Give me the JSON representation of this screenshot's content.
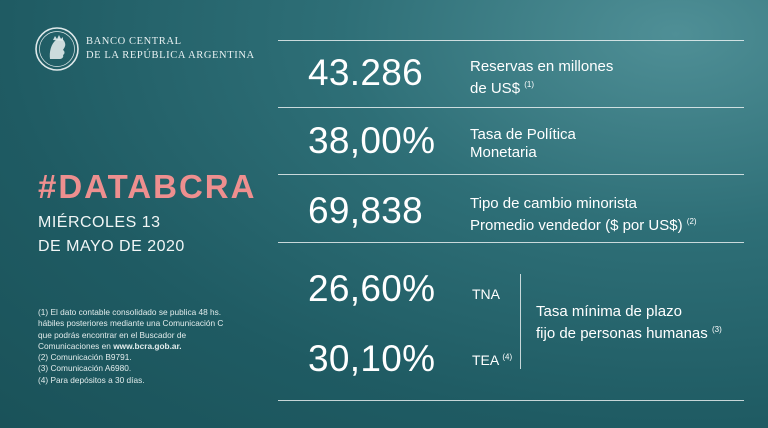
{
  "brand": {
    "line1": "BANCO CENTRAL",
    "line2": "DE LA REPÚBLICA ARGENTINA"
  },
  "hashtag": "#DATABCRA",
  "date": {
    "line1": "MIÉRCOLES 13",
    "line2": "DE MAYO DE 2020"
  },
  "metrics": [
    {
      "value": "43.286",
      "desc1": "Reservas en millones",
      "desc2": "de US$",
      "note": "(1)"
    },
    {
      "value": "38,00%",
      "desc1": "Tasa de Política",
      "desc2": "Monetaria",
      "note": ""
    },
    {
      "value": "69,838",
      "desc1": "Tipo de cambio minorista",
      "desc2": "Promedio vendedor  ($ por US$)",
      "note": "(2)"
    }
  ],
  "rates": {
    "tna": {
      "value": "26,60%",
      "label": "TNA",
      "note": ""
    },
    "tea": {
      "value": "30,10%",
      "label": "TEA",
      "note": "(4)"
    },
    "desc1": "Tasa mínima de plazo",
    "desc2": "fijo de personas humanas",
    "note": "(3)"
  },
  "footnotes": {
    "n1a": "(1) El dato contable consolidado se publica 48 hs.",
    "n1b": "hábiles posteriores mediante una Comunicación C",
    "n1c": "que podrás encontrar en el Buscador de",
    "n1d_pre": "Comunicaciones en ",
    "n1d_link": "www.bcra.gob.ar.",
    "n2": "(2) Comunicación B9791.",
    "n3": "(3) Comunicación A6980.",
    "n4": "(4) Para depósitos a 30 días."
  }
}
